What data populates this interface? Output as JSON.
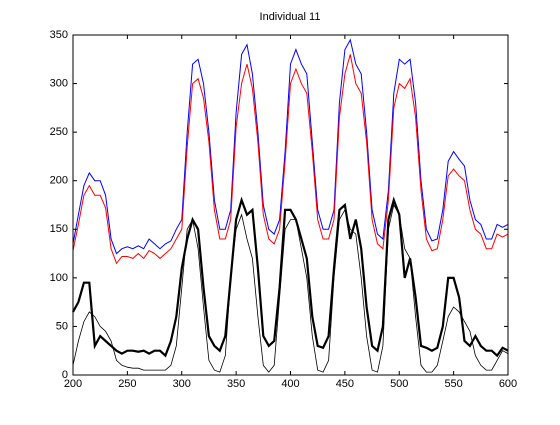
{
  "chart_data": {
    "type": "line",
    "title": "Individual 11",
    "x": [
      200,
      205,
      210,
      215,
      220,
      225,
      230,
      235,
      240,
      245,
      250,
      255,
      260,
      265,
      270,
      275,
      280,
      285,
      290,
      295,
      300,
      305,
      310,
      315,
      320,
      325,
      330,
      335,
      340,
      345,
      350,
      355,
      360,
      365,
      370,
      375,
      380,
      385,
      390,
      395,
      400,
      405,
      410,
      415,
      420,
      425,
      430,
      435,
      440,
      445,
      450,
      455,
      460,
      465,
      470,
      475,
      480,
      485,
      490,
      495,
      500,
      505,
      510,
      515,
      520,
      525,
      530,
      535,
      540,
      545,
      550,
      555,
      560,
      565,
      570,
      575,
      580,
      585,
      590,
      595,
      600
    ],
    "series": [
      {
        "color": "#0000ff",
        "width": 1,
        "values": [
          135,
          165,
          195,
          208,
          200,
          200,
          185,
          140,
          125,
          130,
          132,
          130,
          133,
          130,
          140,
          135,
          130,
          135,
          138,
          150,
          160,
          250,
          320,
          325,
          300,
          250,
          180,
          150,
          150,
          170,
          270,
          330,
          340,
          310,
          250,
          175,
          150,
          145,
          160,
          230,
          320,
          335,
          320,
          310,
          240,
          170,
          150,
          150,
          170,
          280,
          335,
          345,
          320,
          310,
          250,
          170,
          145,
          140,
          190,
          290,
          325,
          320,
          325,
          280,
          200,
          150,
          138,
          140,
          170,
          220,
          230,
          222,
          215,
          180,
          160,
          155,
          140,
          140,
          155,
          152,
          155
        ]
      },
      {
        "color": "#ff0000",
        "width": 1,
        "values": [
          128,
          155,
          185,
          195,
          185,
          185,
          172,
          130,
          115,
          122,
          122,
          120,
          125,
          120,
          128,
          125,
          120,
          125,
          130,
          140,
          150,
          235,
          300,
          305,
          285,
          240,
          170,
          140,
          140,
          160,
          255,
          300,
          320,
          295,
          240,
          165,
          140,
          135,
          150,
          220,
          300,
          315,
          300,
          290,
          230,
          160,
          140,
          140,
          160,
          265,
          310,
          330,
          300,
          290,
          240,
          160,
          135,
          130,
          180,
          275,
          300,
          295,
          305,
          265,
          190,
          140,
          128,
          130,
          160,
          205,
          212,
          205,
          200,
          170,
          150,
          145,
          130,
          130,
          145,
          142,
          145
        ]
      },
      {
        "color": "#000000",
        "width": 2.2,
        "values": [
          65,
          75,
          95,
          95,
          30,
          40,
          35,
          30,
          25,
          22,
          25,
          25,
          24,
          25,
          22,
          25,
          25,
          20,
          35,
          60,
          110,
          140,
          160,
          150,
          90,
          40,
          30,
          25,
          40,
          100,
          160,
          180,
          165,
          170,
          110,
          40,
          30,
          35,
          90,
          170,
          170,
          160,
          140,
          120,
          60,
          30,
          28,
          40,
          110,
          170,
          175,
          140,
          160,
          130,
          70,
          30,
          25,
          50,
          160,
          180,
          165,
          100,
          120,
          80,
          30,
          28,
          25,
          28,
          50,
          100,
          100,
          80,
          35,
          30,
          40,
          30,
          25,
          25,
          20,
          28,
          25
        ]
      },
      {
        "color": "#000000",
        "width": 0.8,
        "values": [
          10,
          35,
          55,
          65,
          60,
          50,
          45,
          35,
          15,
          10,
          8,
          7,
          7,
          5,
          5,
          5,
          5,
          5,
          10,
          30,
          90,
          150,
          160,
          130,
          70,
          15,
          5,
          3,
          20,
          100,
          150,
          165,
          140,
          120,
          60,
          10,
          3,
          10,
          80,
          150,
          160,
          160,
          130,
          100,
          40,
          5,
          3,
          15,
          100,
          160,
          170,
          150,
          145,
          100,
          40,
          5,
          3,
          30,
          150,
          175,
          165,
          130,
          120,
          60,
          10,
          3,
          3,
          10,
          35,
          60,
          70,
          65,
          55,
          45,
          20,
          10,
          5,
          5,
          15,
          25,
          22
        ]
      }
    ],
    "xlim": [
      200,
      600
    ],
    "ylim": [
      0,
      350
    ],
    "xticks": [
      200,
      250,
      300,
      350,
      400,
      450,
      500,
      550,
      600
    ],
    "yticks": [
      0,
      50,
      100,
      150,
      200,
      250,
      300,
      350
    ]
  }
}
